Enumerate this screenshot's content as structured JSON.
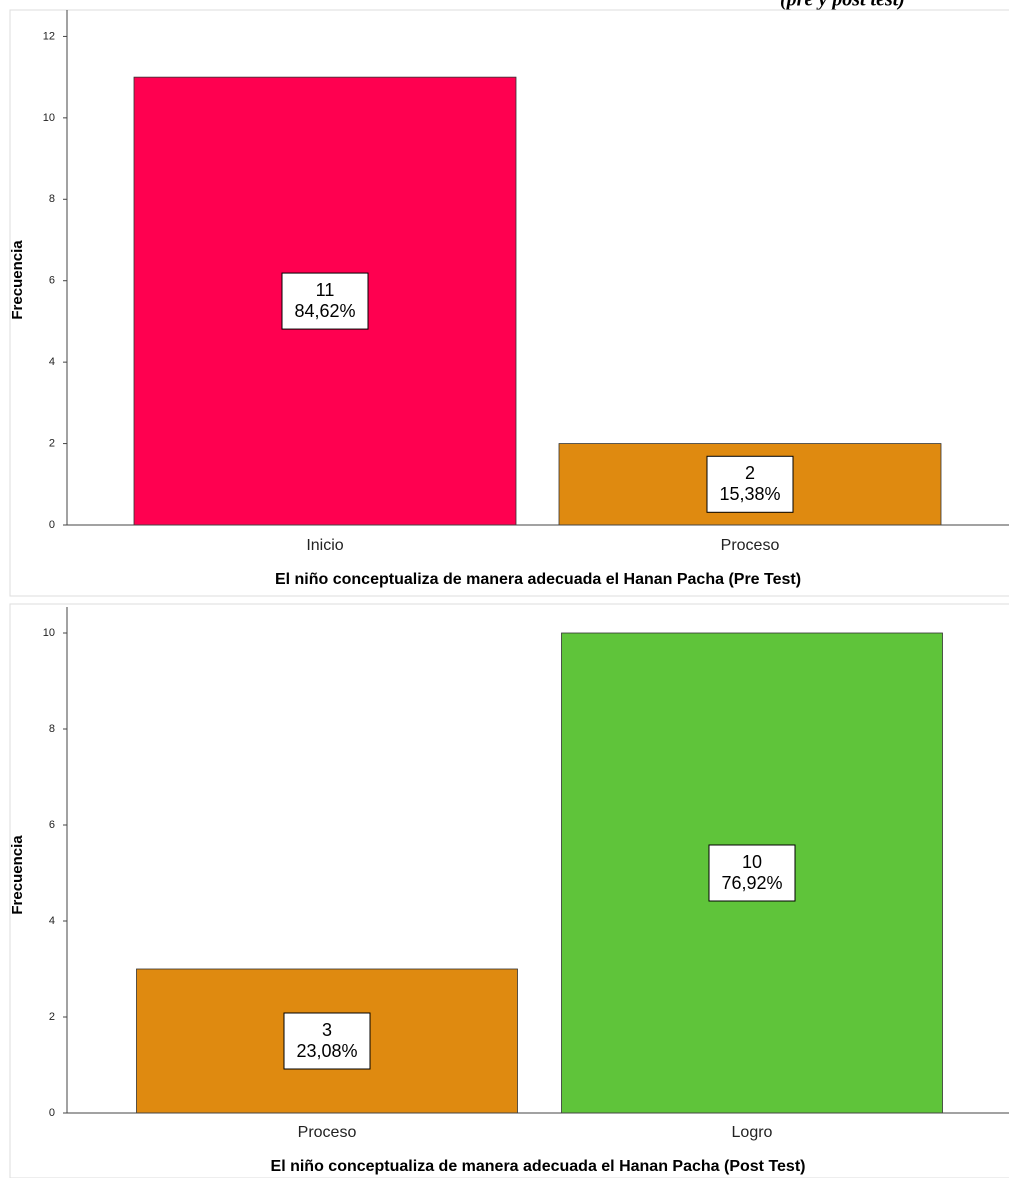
{
  "caption": "(pre y post test)",
  "chart_data": [
    {
      "type": "bar",
      "x_label": "El niño conceptualiza de manera adecuada el Hanan Pacha (Pre Test)",
      "y_label": "Frecuencia",
      "categories": [
        "Inicio",
        "Proceso"
      ],
      "values": [
        11,
        2
      ],
      "colors": [
        "#ff0050",
        "#df8a10"
      ],
      "percentages": [
        84.62,
        15.38
      ],
      "percentage_labels": [
        "84,62%",
        "15,38%"
      ],
      "ylim": [
        0,
        12.6
      ],
      "yticks": [
        0,
        2,
        4,
        6,
        8,
        10,
        12
      ]
    },
    {
      "type": "bar",
      "x_label": "El niño conceptualiza de manera adecuada el Hanan Pacha (Post Test)",
      "y_label": "Frecuencia",
      "categories": [
        "Proceso",
        "Logro"
      ],
      "values": [
        3,
        10
      ],
      "colors": [
        "#df8a10",
        "#5fc43a"
      ],
      "percentages": [
        23.08,
        76.92
      ],
      "percentage_labels": [
        "23,08%",
        "76,92%"
      ],
      "ylim": [
        0,
        10.5
      ],
      "yticks": [
        0,
        2,
        4,
        6,
        8,
        10
      ]
    }
  ]
}
